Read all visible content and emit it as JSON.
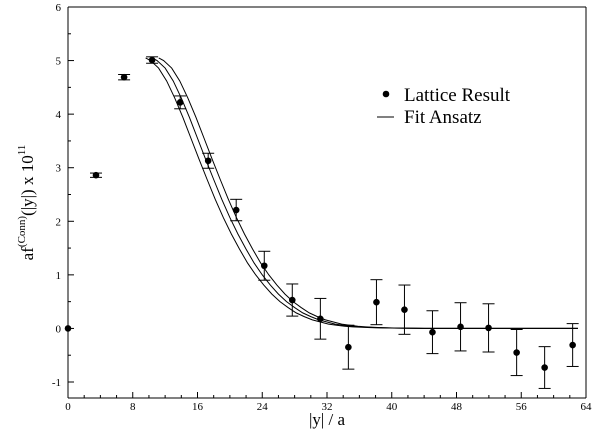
{
  "chart_data": {
    "type": "scatter",
    "xlabel": "|y| / a",
    "ylabel_main": "af",
    "ylabel_sup": "(Conn)",
    "ylabel_tail": "(|y|) x 10",
    "ylabel_exp": "11",
    "xlim": [
      0,
      64
    ],
    "ylim": [
      -1.2,
      6
    ],
    "xticks": [
      0,
      8,
      16,
      24,
      32,
      40,
      48,
      56,
      64
    ],
    "yticks": [
      -1,
      0,
      1,
      2,
      3,
      4,
      5,
      6
    ],
    "grid": false,
    "legend_position": "top-right",
    "series": [
      {
        "name": "Lattice Result",
        "kind": "points-with-errorbars",
        "x": [
          0,
          3.46,
          6.93,
          10.39,
          13.86,
          17.32,
          20.78,
          24.25,
          27.71,
          31.18,
          34.64,
          38.11,
          41.57,
          45.03,
          48.5,
          51.96,
          55.43,
          58.89,
          62.35
        ],
        "y": [
          0.0,
          2.86,
          4.69,
          5.01,
          4.22,
          3.13,
          2.21,
          1.17,
          0.53,
          0.18,
          -0.35,
          0.49,
          0.35,
          -0.07,
          0.03,
          0.01,
          -0.45,
          -0.73,
          -0.31
        ],
        "err": [
          0.0,
          0.04,
          0.05,
          0.06,
          0.12,
          0.14,
          0.2,
          0.27,
          0.3,
          0.38,
          0.41,
          0.42,
          0.46,
          0.4,
          0.45,
          0.45,
          0.43,
          0.39,
          0.4
        ]
      },
      {
        "name": "Fit Ansatz",
        "kind": "line-band",
        "x": [
          10.4,
          11,
          12,
          13,
          14,
          15,
          16,
          17,
          18,
          19,
          20,
          21,
          22,
          23,
          24,
          25,
          26,
          27,
          28,
          29,
          30,
          31,
          32,
          33,
          34,
          35,
          36,
          38,
          40,
          44,
          48,
          52,
          56,
          60,
          63
        ],
        "y": [
          5.05,
          5.0,
          4.86,
          4.62,
          4.3,
          3.94,
          3.55,
          3.16,
          2.78,
          2.41,
          2.07,
          1.76,
          1.48,
          1.22,
          1.0,
          0.81,
          0.64,
          0.5,
          0.39,
          0.29,
          0.22,
          0.16,
          0.12,
          0.08,
          0.06,
          0.04,
          0.03,
          0.015,
          0.007,
          0.002,
          0.0,
          0.0,
          0.0,
          0.0,
          0.0
        ],
        "band_offsets": [
          -0.09,
          0.0,
          0.09
        ]
      }
    ]
  }
}
